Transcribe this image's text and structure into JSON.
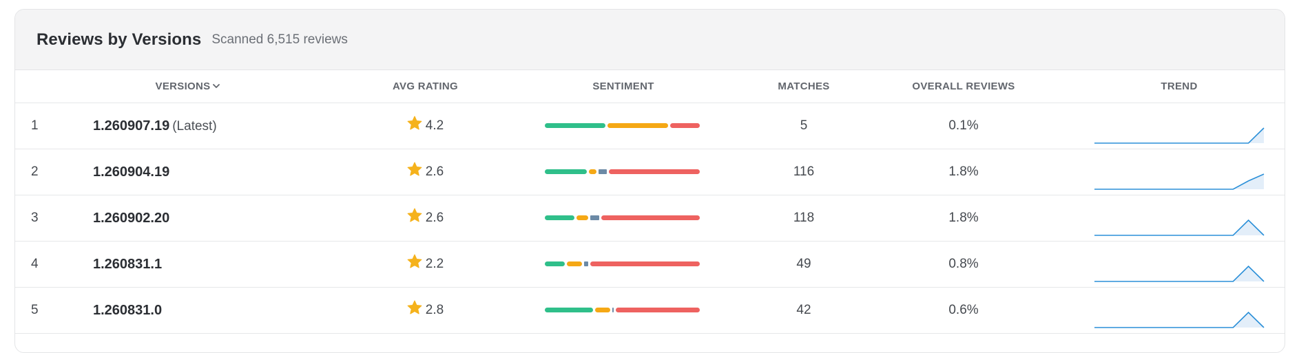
{
  "header": {
    "title": "Reviews by Versions",
    "subtitle": "Scanned 6,515 reviews"
  },
  "columns": {
    "versions": "VERSIONS",
    "avg_rating": "AVG RATING",
    "sentiment": "SENTIMENT",
    "matches": "MATCHES",
    "overall_reviews": "OVERALL REVIEWS",
    "trend": "TREND"
  },
  "colors": {
    "positive": "#2fbf8a",
    "neutral": "#f5a815",
    "mixed": "#6c8aa6",
    "negative": "#ee6260",
    "star": "#f5b21c",
    "trend_line": "#2a8fd8",
    "trend_fill": "#e3eef9"
  },
  "rows": [
    {
      "index": "1",
      "version": "1.260907.19",
      "tag": "(Latest)",
      "rating": "4.2",
      "sentiment": {
        "positive": 0.4,
        "neutral": 0.4,
        "mixed": 0.0,
        "negative": 0.2
      },
      "matches": "5",
      "overall": "0.1%",
      "trend": [
        0,
        0,
        0,
        0,
        0,
        0,
        0,
        0,
        0,
        0,
        0,
        1
      ]
    },
    {
      "index": "2",
      "version": "1.260904.19",
      "tag": "",
      "rating": "2.6",
      "sentiment": {
        "positive": 0.28,
        "neutral": 0.06,
        "mixed": 0.07,
        "negative": 0.59
      },
      "matches": "116",
      "overall": "1.8%",
      "trend": [
        0,
        0,
        0,
        0,
        0,
        0,
        0,
        0,
        0,
        0,
        0.55,
        1
      ]
    },
    {
      "index": "3",
      "version": "1.260902.20",
      "tag": "",
      "rating": "2.6",
      "sentiment": {
        "positive": 0.2,
        "neutral": 0.09,
        "mixed": 0.07,
        "negative": 0.64
      },
      "matches": "118",
      "overall": "1.8%",
      "trend": [
        0,
        0,
        0,
        0,
        0,
        0,
        0,
        0,
        0,
        0,
        1,
        0
      ]
    },
    {
      "index": "4",
      "version": "1.260831.1",
      "tag": "",
      "rating": "2.2",
      "sentiment": {
        "positive": 0.14,
        "neutral": 0.11,
        "mixed": 0.04,
        "negative": 0.71
      },
      "matches": "49",
      "overall": "0.8%",
      "trend": [
        0,
        0,
        0,
        0,
        0,
        0,
        0,
        0,
        0,
        0,
        1,
        0
      ]
    },
    {
      "index": "5",
      "version": "1.260831.0",
      "tag": "",
      "rating": "2.8",
      "sentiment": {
        "positive": 0.32,
        "neutral": 0.11,
        "mixed": 0.02,
        "negative": 0.55
      },
      "matches": "42",
      "overall": "0.6%",
      "trend": [
        0,
        0,
        0,
        0,
        0,
        0,
        0,
        0,
        0,
        0,
        1,
        0
      ]
    }
  ]
}
